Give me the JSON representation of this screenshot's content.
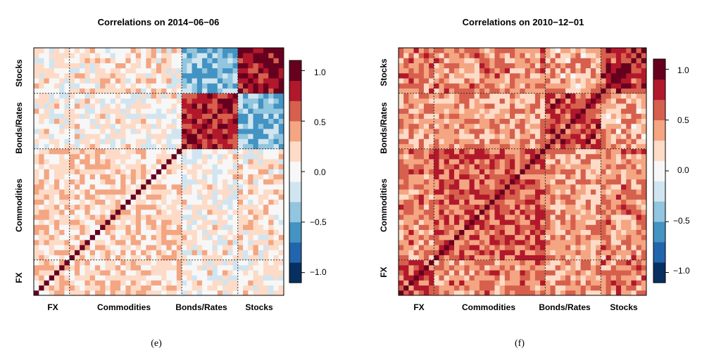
{
  "chart_data": [
    {
      "type": "heatmap",
      "title": "Correlations on 2014−06−06",
      "caption": "(e)",
      "x_groups": [
        "FX",
        "Commodities",
        "Bonds/Rates",
        "Stocks"
      ],
      "y_groups": [
        "FX",
        "Commodities",
        "Bonds/Rates",
        "Stocks"
      ],
      "group_sizes": [
        7,
        22,
        11,
        9
      ],
      "block_means": [
        [
          0.25,
          0.2,
          0.05,
          0.05
        ],
        [
          0.2,
          0.2,
          0.05,
          0.1
        ],
        [
          0.05,
          0.05,
          0.8,
          -0.4
        ],
        [
          0.05,
          0.1,
          -0.4,
          0.85
        ]
      ],
      "colorbar": {
        "ticks": [
          "1.0",
          "0.5",
          "0.0",
          "−0.5",
          "−1.0"
        ],
        "range": [
          -1.1,
          1.1
        ]
      }
    },
    {
      "type": "heatmap",
      "title": "Correlations on 2010−12−01",
      "caption": "(f)",
      "x_groups": [
        "FX",
        "Commodities",
        "Bonds/Rates",
        "Stocks"
      ],
      "y_groups": [
        "FX",
        "Commodities",
        "Bonds/Rates",
        "Stocks"
      ],
      "group_sizes": [
        7,
        22,
        11,
        9
      ],
      "block_means": [
        [
          0.65,
          0.45,
          0.4,
          0.45
        ],
        [
          0.45,
          0.6,
          0.4,
          0.45
        ],
        [
          0.4,
          0.4,
          0.7,
          0.35
        ],
        [
          0.45,
          0.45,
          0.35,
          0.75
        ]
      ],
      "colorbar": {
        "ticks": [
          "1.0",
          "0.5",
          "0.0",
          "−0.5",
          "−1.0"
        ],
        "range": [
          -1.1,
          1.1
        ]
      }
    }
  ],
  "palette": [
    "#053061",
    "#2166ac",
    "#4393c3",
    "#92c5de",
    "#d1e5f0",
    "#f7f7f7",
    "#fddbc7",
    "#f4a582",
    "#d6604d",
    "#b2182b",
    "#67001f"
  ]
}
